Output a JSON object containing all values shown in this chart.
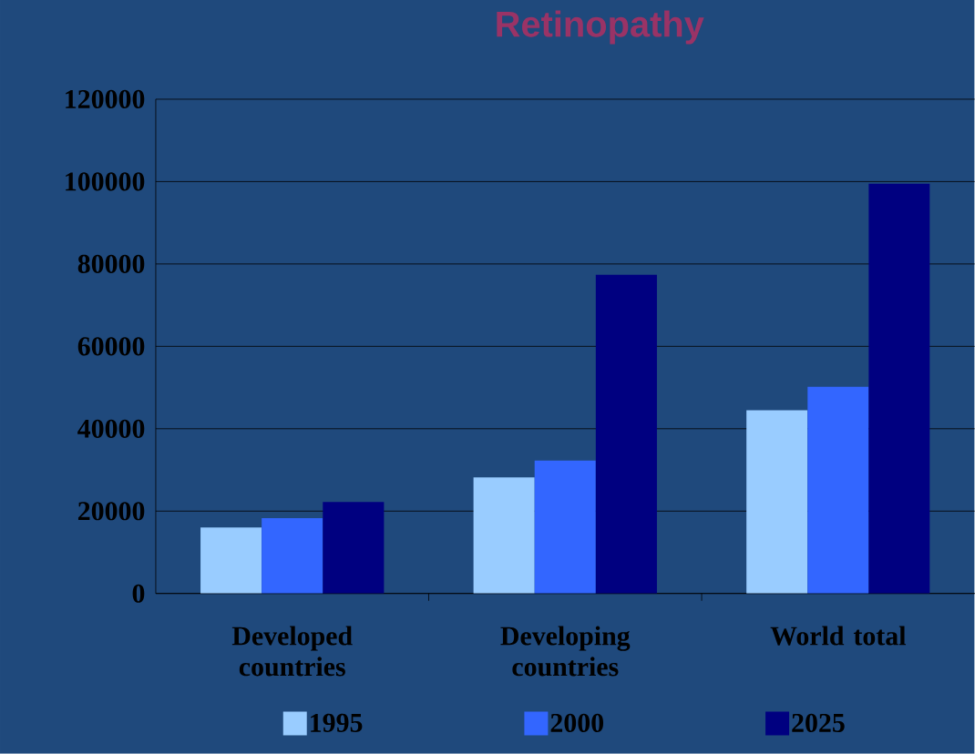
{
  "chart_data": {
    "type": "bar",
    "title": "Retinopathy",
    "categories": [
      "Developed countries",
      "Developing countries",
      "World total"
    ],
    "series": [
      {
        "name": "1995",
        "color": "#99ccff",
        "values": [
          16000,
          28200,
          44500
        ]
      },
      {
        "name": "2000",
        "color": "#3366ff",
        "values": [
          18300,
          32300,
          50200
        ]
      },
      {
        "name": "2025",
        "color": "#000080",
        "values": [
          22200,
          77400,
          99500
        ]
      }
    ],
    "ylim": [
      0,
      120000
    ],
    "yticks": [
      0,
      20000,
      40000,
      60000,
      80000,
      100000,
      120000
    ],
    "grid": "y",
    "legend": "bottom"
  }
}
